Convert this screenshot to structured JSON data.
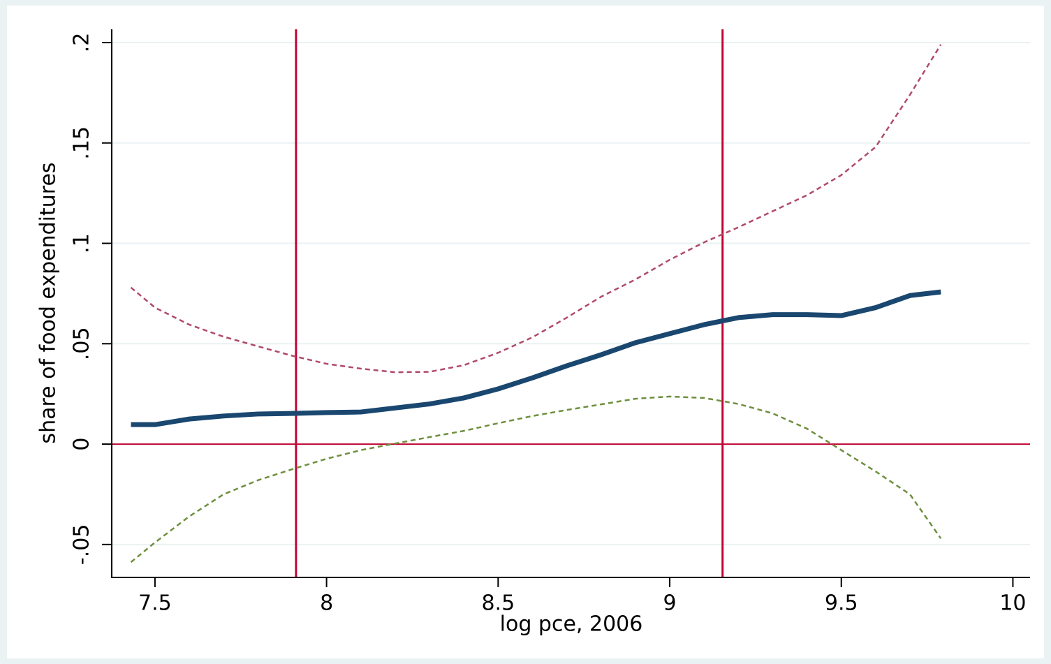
{
  "chart_data": {
    "type": "line",
    "xlabel": "log pce, 2006",
    "ylabel": "share of food expenditures",
    "x": [
      7.43,
      7.5,
      7.6,
      7.7,
      7.8,
      7.9,
      8.0,
      8.1,
      8.2,
      8.3,
      8.4,
      8.5,
      8.6,
      8.7,
      8.8,
      8.9,
      9.0,
      9.1,
      9.2,
      9.3,
      9.4,
      9.5,
      9.6,
      9.7,
      9.79
    ],
    "series": [
      {
        "color": "#1a476f",
        "style": "solid",
        "values": [
          0.0097,
          0.0097,
          0.0125,
          0.014,
          0.015,
          0.0153,
          0.0157,
          0.016,
          0.018,
          0.02,
          0.023,
          0.0275,
          0.033,
          0.039,
          0.0445,
          0.0505,
          0.055,
          0.0595,
          0.063,
          0.0645,
          0.0645,
          0.064,
          0.068,
          0.074,
          0.0758
        ]
      },
      {
        "color": "#b04a68",
        "style": "dashed",
        "values": [
          0.078,
          0.068,
          0.0595,
          0.0535,
          0.0487,
          0.044,
          0.04,
          0.0376,
          0.0358,
          0.036,
          0.0393,
          0.0455,
          0.0532,
          0.063,
          0.0734,
          0.082,
          0.0918,
          0.1005,
          0.108,
          0.116,
          0.124,
          0.134,
          0.148,
          0.174,
          0.199
        ]
      },
      {
        "color": "#6e8f3e",
        "style": "dashed",
        "values": [
          -0.0588,
          -0.049,
          -0.036,
          -0.025,
          -0.018,
          -0.0125,
          -0.0073,
          -0.003,
          0.0003,
          0.0035,
          0.0066,
          0.0104,
          0.014,
          0.017,
          0.0198,
          0.0226,
          0.0237,
          0.023,
          0.02,
          0.0153,
          0.0077,
          -0.003,
          -0.0136,
          -0.025,
          -0.047
        ]
      }
    ],
    "xlines": [
      7.911,
      9.154
    ],
    "ylines": [
      0
    ],
    "refcolor": "#c10534",
    "xlim": [
      7.374,
      10.05
    ],
    "ylim": [
      -0.0664,
      0.2066
    ],
    "xticks": [
      7.5,
      8,
      8.5,
      9,
      9.5,
      10
    ],
    "yticks": [
      {
        "value": -0.05,
        "label": "-.05"
      },
      0,
      {
        "value": 0.05,
        "label": ".05"
      },
      {
        "value": 0.1,
        "label": ".1"
      },
      {
        "value": 0.15,
        "label": ".15"
      },
      {
        "value": 0.2,
        "label": ".2"
      }
    ],
    "grid": true
  }
}
